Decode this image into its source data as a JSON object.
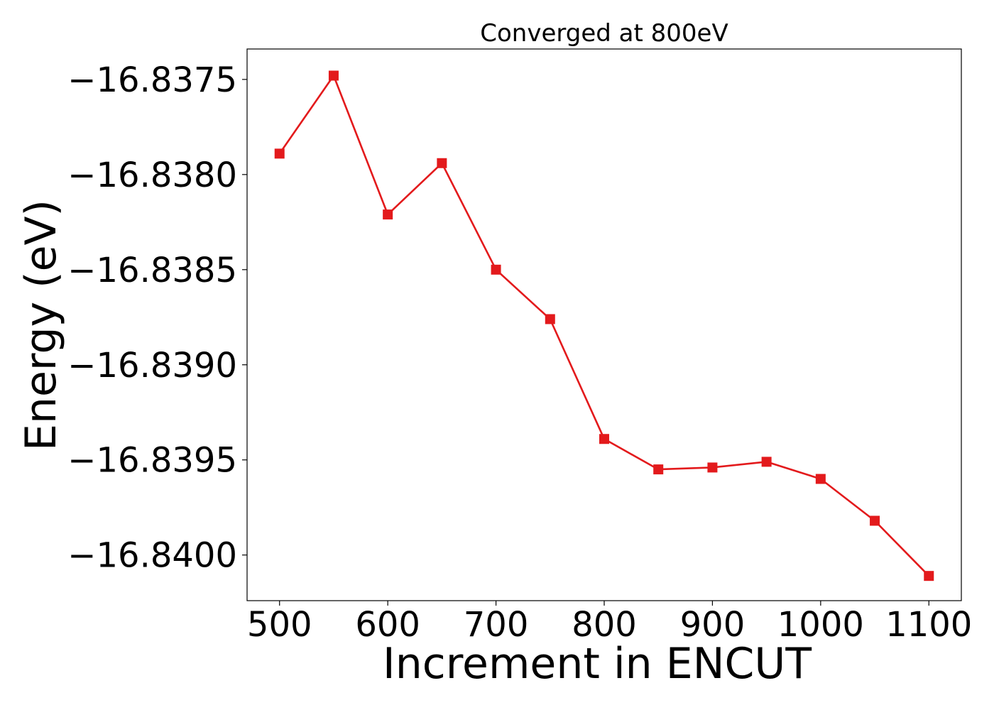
{
  "chart_data": {
    "type": "line",
    "title": "Converged at 800eV",
    "xlabel": "Increment in ENCUT",
    "ylabel": "Energy (eV)",
    "xlim": [
      470,
      1130
    ],
    "ylim": [
      -16.84024,
      -16.83734
    ],
    "x_ticks": [
      500,
      600,
      700,
      800,
      900,
      1000,
      1100
    ],
    "x_tick_labels": [
      "500",
      "600",
      "700",
      "800",
      "900",
      "1000",
      "1100"
    ],
    "y_ticks": [
      -16.8375,
      -16.838,
      -16.8385,
      -16.839,
      -16.8395,
      -16.84
    ],
    "y_tick_labels": [
      "−16.8375",
      "−16.8380",
      "−16.8385",
      "−16.8390",
      "−16.8395",
      "−16.8400"
    ],
    "grid": false,
    "series": [
      {
        "color": "#e31a1c",
        "marker": "square",
        "x": [
          500,
          550,
          600,
          650,
          700,
          750,
          800,
          850,
          900,
          950,
          1000,
          1050,
          1100
        ],
        "y": [
          -16.83789,
          -16.83748,
          -16.83821,
          -16.83794,
          -16.8385,
          -16.83876,
          -16.83939,
          -16.83955,
          -16.83954,
          -16.83951,
          -16.8396,
          -16.83982,
          -16.84011
        ]
      }
    ]
  }
}
